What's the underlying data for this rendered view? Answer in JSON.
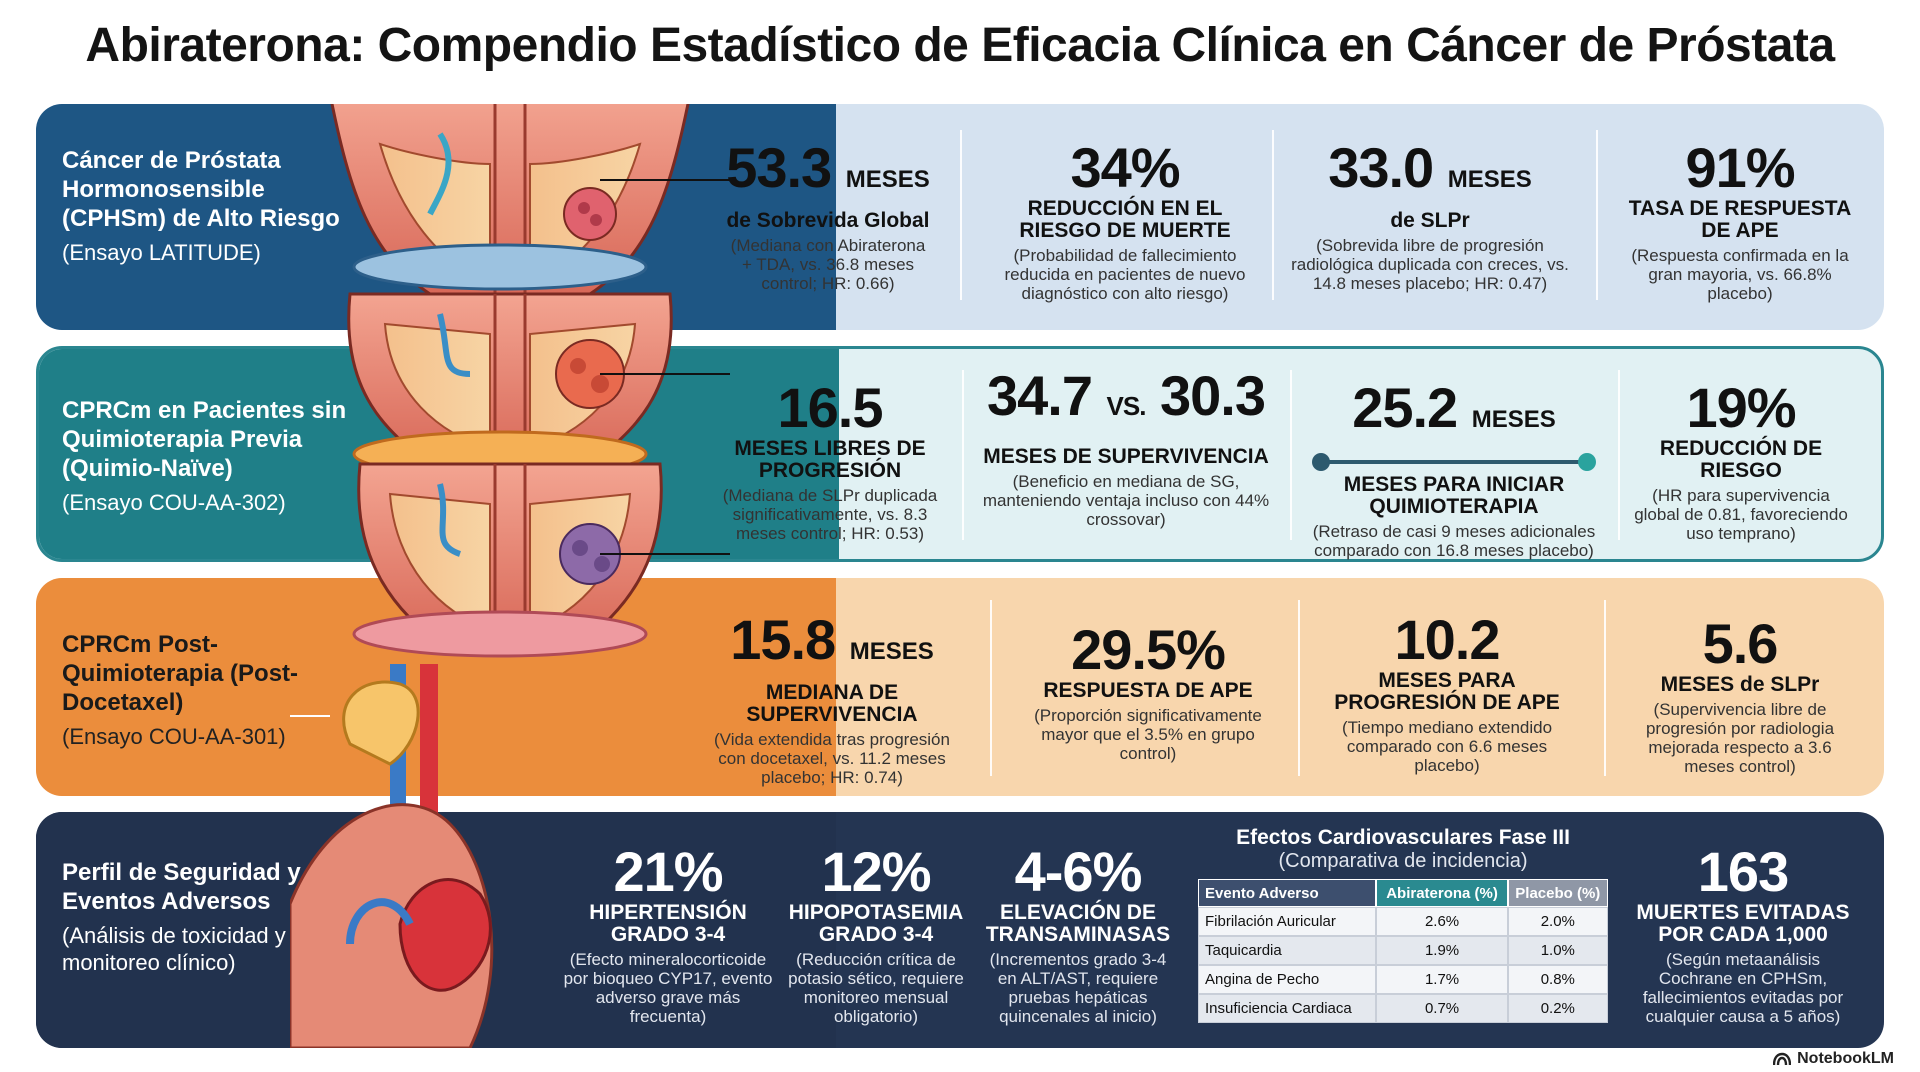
{
  "title": "Abiraterona: Compendio Estadístico de Eficacia Clínica en Cáncer de Próstata",
  "bands": [
    {
      "label_title": "Cáncer de Próstata Hormonosensible (CPHSm) de Alto Riesgo",
      "label_sub": "(Ensayo LATITUDE)",
      "metrics": [
        {
          "value": "53.3",
          "unit": "MESES",
          "head": "de Sobrevida Global",
          "desc": "(Mediana con Abiraterona + TDA, vs. 36.8 meses control; HR: 0.66)"
        },
        {
          "value": "34%",
          "unit": "",
          "head": "REDUCCIÓN EN EL RIESGO DE MUERTE",
          "desc": "(Probabilidad de fallecimiento reducida en pacientes de nuevo diagnóstico con alto riesgo)"
        },
        {
          "value": "33.0",
          "unit": "MESES",
          "head": "de SLPr",
          "desc": "(Sobrevida libre de progresión radiológica duplicada con creces, vs. 14.8 meses placebo; HR: 0.47)"
        },
        {
          "value": "91%",
          "unit": "",
          "head": "TASA DE RESPUESTA DE APE",
          "desc": "(Respuesta confirmada en la gran mayoria, vs. 66.8% placebo)"
        }
      ]
    },
    {
      "label_title": "CPRCm en Pacientes sin Quimioterapia Previa (Quimio-Naïve)",
      "label_sub": "(Ensayo COU-AA-302)",
      "metrics": [
        {
          "value": "16.5",
          "unit": "",
          "head": "MESES LIBRES DE PROGRESIÓN",
          "desc": "(Mediana de SLPr duplicada significativamente, vs. 8.3 meses control; HR: 0.53)"
        },
        {
          "value": "34.7",
          "vs": "VS.",
          "value2": "30.3",
          "head": "MESES DE SUPERVIVENCIA",
          "desc": "(Beneficio en mediana de SG, manteniendo ventaja incluso con 44% crossovar)"
        },
        {
          "value": "25.2",
          "unit": "MESES",
          "head": "MESES PARA INICIAR QUIMIOTERAPIA",
          "desc": "(Retraso de casi 9 meses adicionales comparado con 16.8 meses placebo)"
        },
        {
          "value": "19%",
          "unit": "",
          "head": "REDUCCIÓN DE RIESGO",
          "desc": "(HR para supervivencia global de 0.81, favoreciendo uso temprano)"
        }
      ]
    },
    {
      "label_title": "CPRCm Post-Quimioterapia (Post-Docetaxel)",
      "label_sub": "(Ensayo COU-AA-301)",
      "metrics": [
        {
          "value": "15.8",
          "unit": "MESES",
          "head": "MEDIANA DE SUPERVIVENCIA",
          "desc": "(Vida extendida tras progresión con docetaxel, vs. 11.2 meses placebo; HR: 0.74)"
        },
        {
          "value": "29.5%",
          "unit": "",
          "head": "RESPUESTA DE APE",
          "desc": "(Proporción significativamente mayor que el 3.5% en grupo control)"
        },
        {
          "value": "10.2",
          "unit": "",
          "head": "MESES PARA PROGRESIÓN DE APE",
          "desc": "(Tiempo mediano extendido comparado con 6.6 meses placebo)"
        },
        {
          "value": "5.6",
          "unit": "",
          "head": "MESES de SLPr",
          "desc": "(Supervivencia libre de progresión por radiologia mejorada respecto a 3.6 meses control)"
        }
      ]
    },
    {
      "label_title": "Perfil de Seguridad y Eventos Adversos",
      "label_sub": "(Análisis de toxicidad y monitoreo clínico)",
      "metrics": [
        {
          "value": "21%",
          "unit": "",
          "head": "HIPERTENSIÓN GRADO 3-4",
          "desc": "(Efecto mineralocorticoide por bioqueo CYP17, evento adverso grave más frecuenta)"
        },
        {
          "value": "12%",
          "unit": "",
          "head": "HIPOPOTASEMIA GRADO 3-4",
          "desc": "(Reducción crítica de potasio sético, requiere monitoreo mensual obligatorio)"
        },
        {
          "value": "4-6%",
          "unit": "",
          "head": "ELEVACIÓN DE TRANSAMINASAS",
          "desc": "(Incrementos grado 3-4 en ALT/AST, requiere pruebas hepáticas quincenales al inicio)"
        },
        {
          "value": "163",
          "unit": "",
          "head": "MUERTES EVITADAS POR CADA 1,000",
          "desc": "(Según metaanálisis Cochrane en CPHSm, fallecimientos evitadas por cualquier causa a 5 años)"
        }
      ]
    }
  ],
  "cardio": {
    "title": "Efectos Cardiovasculares Fase III",
    "subtitle": "(Comparativa de incidencia)",
    "headers": [
      "Evento Adverso",
      "Abiraterona (%)",
      "Placebo (%)"
    ],
    "rows": [
      [
        "Fibrilación Auricular",
        "2.6%",
        "2.0%"
      ],
      [
        "Taquicardia",
        "1.9%",
        "1.0%"
      ],
      [
        "Angina de Pecho",
        "1.7%",
        "0.8%"
      ],
      [
        "Insuficiencia Cardiaca",
        "0.7%",
        "0.2%"
      ]
    ]
  },
  "brand": "NotebookLM",
  "colors": {
    "band1_dark": "#1e5684",
    "band1_light": "#d5e2f0",
    "band2_dark": "#1f7f88",
    "band2_light": "#e1f1f3",
    "band3_dark": "#eb8d3c",
    "band3_light": "#f8d6ad",
    "band4_dark": "#243552"
  }
}
